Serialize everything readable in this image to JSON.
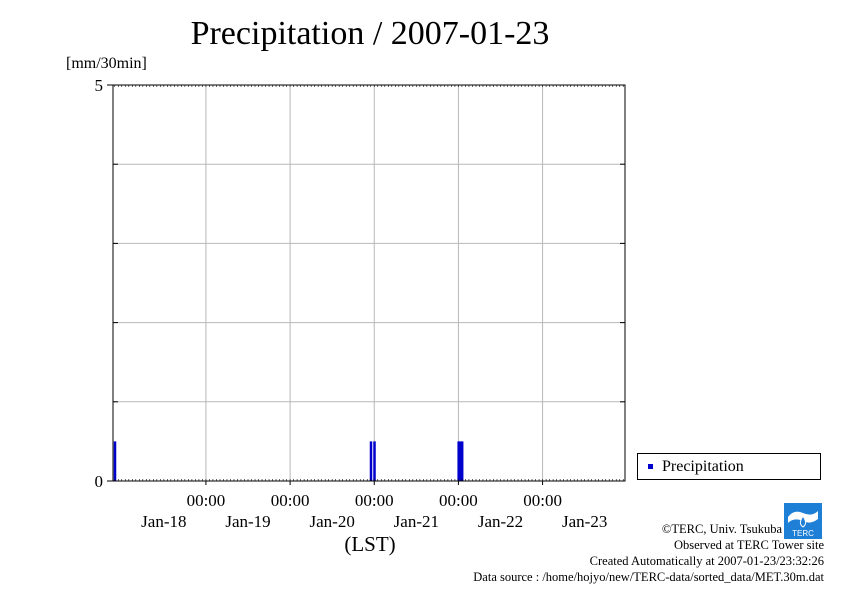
{
  "chart_data": {
    "type": "bar",
    "title": "Precipitation / 2007-01-23",
    "ylabel": "[mm/30min]",
    "xlabel": "(LST)",
    "ylim": [
      0,
      5
    ],
    "yticks": [
      0,
      5
    ],
    "x_time_range": [
      "2007-01-17T21:30",
      "2007-01-23T23:30"
    ],
    "x_tick_times": [
      {
        "time": "2007-01-19T00:00",
        "label": "00:00"
      },
      {
        "time": "2007-01-20T00:00",
        "label": "00:00"
      },
      {
        "time": "2007-01-21T00:00",
        "label": "00:00"
      },
      {
        "time": "2007-01-22T00:00",
        "label": "00:00"
      },
      {
        "time": "2007-01-23T00:00",
        "label": "00:00"
      }
    ],
    "date_labels": [
      {
        "time": "2007-01-18T12:00",
        "label": "Jan-18"
      },
      {
        "time": "2007-01-19T12:00",
        "label": "Jan-19"
      },
      {
        "time": "2007-01-20T12:00",
        "label": "Jan-20"
      },
      {
        "time": "2007-01-21T12:00",
        "label": "Jan-21"
      },
      {
        "time": "2007-01-22T12:00",
        "label": "Jan-22"
      },
      {
        "time": "2007-01-23T12:00",
        "label": "Jan-23"
      }
    ],
    "grid": true,
    "legend_position": "right",
    "series": [
      {
        "name": "Precipitation",
        "color": "#0000cc",
        "points": [
          {
            "time": "2007-01-17T22:00",
            "value": 0.5
          },
          {
            "time": "2007-01-20T23:00",
            "value": 0.5
          },
          {
            "time": "2007-01-21T00:00",
            "value": 0.5
          },
          {
            "time": "2007-01-22T00:00",
            "value": 0.5
          },
          {
            "time": "2007-01-22T00:30",
            "value": 0.5
          },
          {
            "time": "2007-01-22T01:00",
            "value": 0.5
          }
        ]
      }
    ]
  },
  "legend": {
    "label": "Precipitation"
  },
  "credits": {
    "line1": "©TERC, Univ. Tsukuba",
    "line2": "Observed at TERC Tower site",
    "line3": "Created Automatically at 2007-01-23/23:32:26",
    "line4": "Data source : /home/hojyo/new/TERC-data/sorted_data/MET.30m.dat"
  },
  "logo": {
    "text": "TERC",
    "color": "#1e7fd6"
  }
}
